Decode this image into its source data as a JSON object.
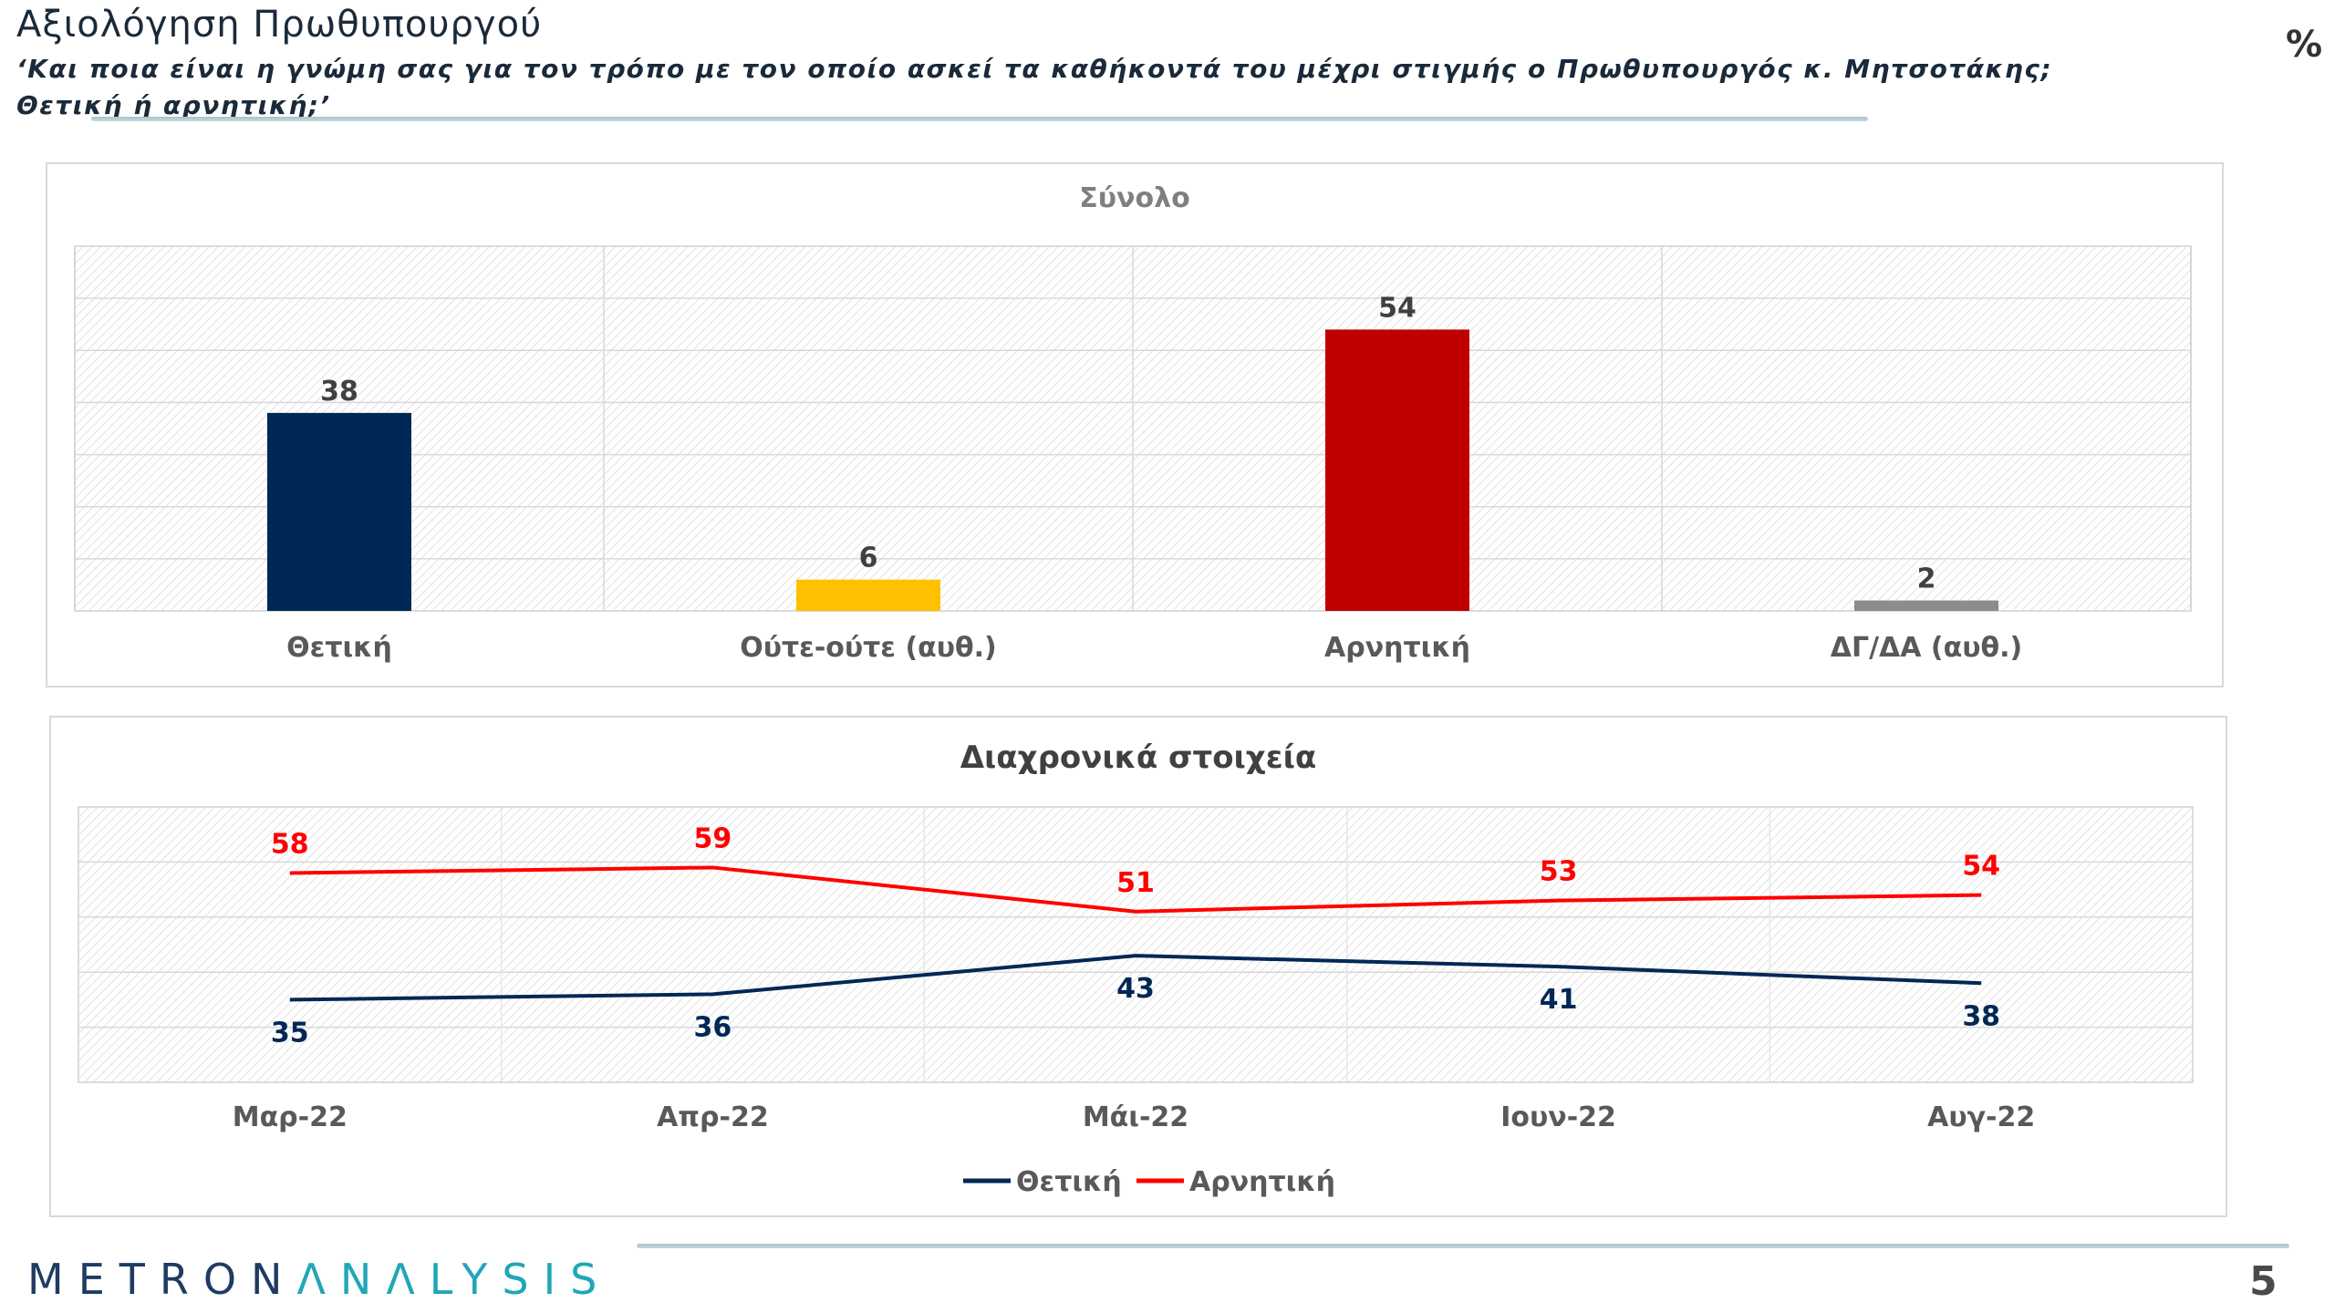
{
  "header": {
    "title": "Αξιολόγηση Πρωθυπουργού",
    "subtitle": "‘Και ποια είναι η γνώμη σας για τον τρόπο με τον οποίο ασκεί τα καθήκοντά του μέχρι στιγμής ο Πρωθυπουργός κ. Μητσοτάκης; Θετική ή αρνητική;’",
    "unit": "%"
  },
  "footer": {
    "logo_dark": "METRON",
    "logo_accent": "ΛNΛLYSIS",
    "page_number": "5"
  },
  "colors": {
    "positive": "#002855",
    "neutral": "#ffc000",
    "negative": "#c00000",
    "dkna": "#8c8c8c",
    "negative_line": "#ff0000"
  },
  "chart_data": [
    {
      "type": "bar",
      "title": "Σύνολο",
      "categories": [
        "Θετική",
        "Ούτε-ούτε (αυθ.)",
        "Αρνητική",
        "ΔΓ/ΔΑ (αυθ.)"
      ],
      "values": [
        38,
        6,
        54,
        2
      ],
      "colors": [
        "#002855",
        "#ffc000",
        "#c00000",
        "#8c8c8c"
      ],
      "ylim": [
        0,
        70
      ],
      "grid": true
    },
    {
      "type": "line",
      "title": "Διαχρονικά στοιχεία",
      "categories": [
        "Μαρ-22",
        "Απρ-22",
        "Μάι-22",
        "Ιουν-22",
        "Αυγ-22"
      ],
      "series": [
        {
          "name": "Θετική",
          "values": [
            35,
            36,
            43,
            41,
            38
          ],
          "color": "#002855"
        },
        {
          "name": "Αρνητική",
          "values": [
            58,
            59,
            51,
            53,
            54
          ],
          "color": "#ff0000"
        }
      ],
      "ylim": [
        0,
        100
      ],
      "legend": "bottom",
      "grid": true
    }
  ]
}
